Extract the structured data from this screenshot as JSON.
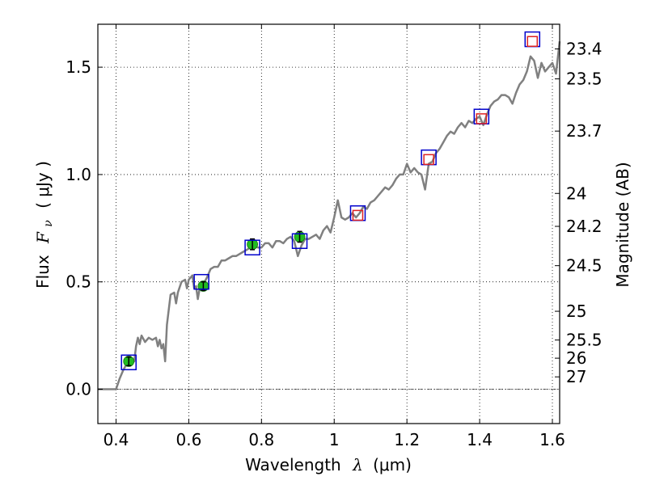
{
  "chart_data": {
    "type": "line",
    "xlim": [
      0.35,
      1.62
    ],
    "ylim": [
      -0.16,
      1.7
    ],
    "grid": true,
    "x_ticks": [
      0.4,
      0.6,
      0.8,
      1.0,
      1.2,
      1.4,
      1.6
    ],
    "x_tick_labels": [
      "0.4",
      "0.6",
      "0.8",
      "1",
      "1.2",
      "1.4",
      "1.6"
    ],
    "y_ticks": [
      0.0,
      0.5,
      1.0,
      1.5
    ],
    "y_tick_labels": [
      "0.0",
      "0.5",
      "1.0",
      "1.5"
    ],
    "xlabel": {
      "text": "Wavelength",
      "symbol": "λ",
      "unit": "(μm)"
    },
    "ylabel": {
      "text": "Flux",
      "symbol": "F",
      "subscript": "ν",
      "unit": "( μJy )"
    },
    "right_axis": {
      "label": "Magnitude (AB)",
      "ticks": [
        "23.4",
        "23.5",
        "23.7",
        "24",
        "24.2",
        "24.5",
        "25",
        "25.5",
        "26",
        "27"
      ],
      "zero_point_ujy": 3631000000
    },
    "series": [
      {
        "kind": "line",
        "color": "#808080",
        "points": [
          [
            0.35,
            0.0
          ],
          [
            0.38,
            0.0
          ],
          [
            0.4,
            0.0
          ],
          [
            0.41,
            0.05
          ],
          [
            0.42,
            0.09
          ],
          [
            0.43,
            0.12
          ],
          [
            0.44,
            0.15
          ],
          [
            0.45,
            0.13
          ],
          [
            0.455,
            0.2
          ],
          [
            0.46,
            0.24
          ],
          [
            0.465,
            0.21
          ],
          [
            0.47,
            0.25
          ],
          [
            0.48,
            0.22
          ],
          [
            0.49,
            0.24
          ],
          [
            0.5,
            0.23
          ],
          [
            0.51,
            0.24
          ],
          [
            0.515,
            0.2
          ],
          [
            0.52,
            0.23
          ],
          [
            0.525,
            0.19
          ],
          [
            0.53,
            0.21
          ],
          [
            0.535,
            0.13
          ],
          [
            0.54,
            0.3
          ],
          [
            0.55,
            0.44
          ],
          [
            0.56,
            0.45
          ],
          [
            0.565,
            0.4
          ],
          [
            0.57,
            0.45
          ],
          [
            0.58,
            0.5
          ],
          [
            0.59,
            0.51
          ],
          [
            0.595,
            0.47
          ],
          [
            0.6,
            0.51
          ],
          [
            0.61,
            0.53
          ],
          [
            0.615,
            0.47
          ],
          [
            0.62,
            0.48
          ],
          [
            0.625,
            0.42
          ],
          [
            0.63,
            0.47
          ],
          [
            0.64,
            0.49
          ],
          [
            0.65,
            0.52
          ],
          [
            0.66,
            0.56
          ],
          [
            0.67,
            0.57
          ],
          [
            0.68,
            0.57
          ],
          [
            0.69,
            0.6
          ],
          [
            0.7,
            0.6
          ],
          [
            0.71,
            0.61
          ],
          [
            0.72,
            0.62
          ],
          [
            0.73,
            0.62
          ],
          [
            0.74,
            0.63
          ],
          [
            0.75,
            0.64
          ],
          [
            0.76,
            0.65
          ],
          [
            0.77,
            0.66
          ],
          [
            0.78,
            0.67
          ],
          [
            0.79,
            0.66
          ],
          [
            0.8,
            0.66
          ],
          [
            0.81,
            0.68
          ],
          [
            0.82,
            0.68
          ],
          [
            0.83,
            0.66
          ],
          [
            0.84,
            0.69
          ],
          [
            0.85,
            0.69
          ],
          [
            0.86,
            0.68
          ],
          [
            0.87,
            0.7
          ],
          [
            0.88,
            0.71
          ],
          [
            0.89,
            0.69
          ],
          [
            0.9,
            0.62
          ],
          [
            0.91,
            0.67
          ],
          [
            0.92,
            0.7
          ],
          [
            0.93,
            0.7
          ],
          [
            0.94,
            0.71
          ],
          [
            0.95,
            0.72
          ],
          [
            0.96,
            0.7
          ],
          [
            0.97,
            0.74
          ],
          [
            0.98,
            0.76
          ],
          [
            0.99,
            0.73
          ],
          [
            1.0,
            0.8
          ],
          [
            1.01,
            0.88
          ],
          [
            1.02,
            0.8
          ],
          [
            1.03,
            0.79
          ],
          [
            1.04,
            0.8
          ],
          [
            1.05,
            0.82
          ],
          [
            1.06,
            0.8
          ],
          [
            1.07,
            0.82
          ],
          [
            1.08,
            0.85
          ],
          [
            1.09,
            0.84
          ],
          [
            1.1,
            0.87
          ],
          [
            1.11,
            0.88
          ],
          [
            1.12,
            0.9
          ],
          [
            1.13,
            0.92
          ],
          [
            1.14,
            0.94
          ],
          [
            1.15,
            0.93
          ],
          [
            1.16,
            0.95
          ],
          [
            1.17,
            0.98
          ],
          [
            1.18,
            1.0
          ],
          [
            1.19,
            1.0
          ],
          [
            1.2,
            1.05
          ],
          [
            1.21,
            1.01
          ],
          [
            1.22,
            1.03
          ],
          [
            1.23,
            1.01
          ],
          [
            1.24,
            1.0
          ],
          [
            1.25,
            0.93
          ],
          [
            1.26,
            1.05
          ],
          [
            1.27,
            1.06
          ],
          [
            1.28,
            1.1
          ],
          [
            1.29,
            1.12
          ],
          [
            1.3,
            1.15
          ],
          [
            1.31,
            1.18
          ],
          [
            1.32,
            1.2
          ],
          [
            1.33,
            1.19
          ],
          [
            1.34,
            1.22
          ],
          [
            1.35,
            1.24
          ],
          [
            1.36,
            1.22
          ],
          [
            1.37,
            1.25
          ],
          [
            1.38,
            1.24
          ],
          [
            1.39,
            1.26
          ],
          [
            1.4,
            1.27
          ],
          [
            1.41,
            1.23
          ],
          [
            1.42,
            1.28
          ],
          [
            1.43,
            1.32
          ],
          [
            1.44,
            1.34
          ],
          [
            1.45,
            1.35
          ],
          [
            1.46,
            1.37
          ],
          [
            1.47,
            1.37
          ],
          [
            1.48,
            1.36
          ],
          [
            1.49,
            1.33
          ],
          [
            1.5,
            1.38
          ],
          [
            1.51,
            1.42
          ],
          [
            1.52,
            1.44
          ],
          [
            1.53,
            1.48
          ],
          [
            1.54,
            1.55
          ],
          [
            1.55,
            1.53
          ],
          [
            1.56,
            1.45
          ],
          [
            1.57,
            1.52
          ],
          [
            1.58,
            1.48
          ],
          [
            1.59,
            1.5
          ],
          [
            1.6,
            1.52
          ],
          [
            1.61,
            1.47
          ],
          [
            1.62,
            1.62
          ]
        ]
      },
      {
        "kind": "points",
        "marker": "circle",
        "color": "#22bb22",
        "points": [
          {
            "x": 0.435,
            "y": 0.13,
            "yerr": 0.02
          },
          {
            "x": 0.64,
            "y": 0.48,
            "yerr": 0.02
          },
          {
            "x": 0.775,
            "y": 0.675,
            "yerr": 0.025
          },
          {
            "x": 0.905,
            "y": 0.71,
            "yerr": 0.025
          }
        ]
      },
      {
        "kind": "points",
        "marker": "square-open",
        "color": "#0000cc",
        "points": [
          {
            "x": 0.435,
            "y": 0.125
          },
          {
            "x": 0.635,
            "y": 0.5
          },
          {
            "x": 0.775,
            "y": 0.66
          },
          {
            "x": 0.905,
            "y": 0.69
          },
          {
            "x": 1.065,
            "y": 0.82
          },
          {
            "x": 1.26,
            "y": 1.08
          },
          {
            "x": 1.405,
            "y": 1.27
          },
          {
            "x": 1.545,
            "y": 1.63
          }
        ]
      },
      {
        "kind": "points",
        "marker": "square-open",
        "color": "#dd2222",
        "points": [
          {
            "x": 1.065,
            "y": 0.81
          },
          {
            "x": 1.26,
            "y": 1.07
          },
          {
            "x": 1.405,
            "y": 1.26
          },
          {
            "x": 1.545,
            "y": 1.62
          }
        ]
      }
    ]
  }
}
